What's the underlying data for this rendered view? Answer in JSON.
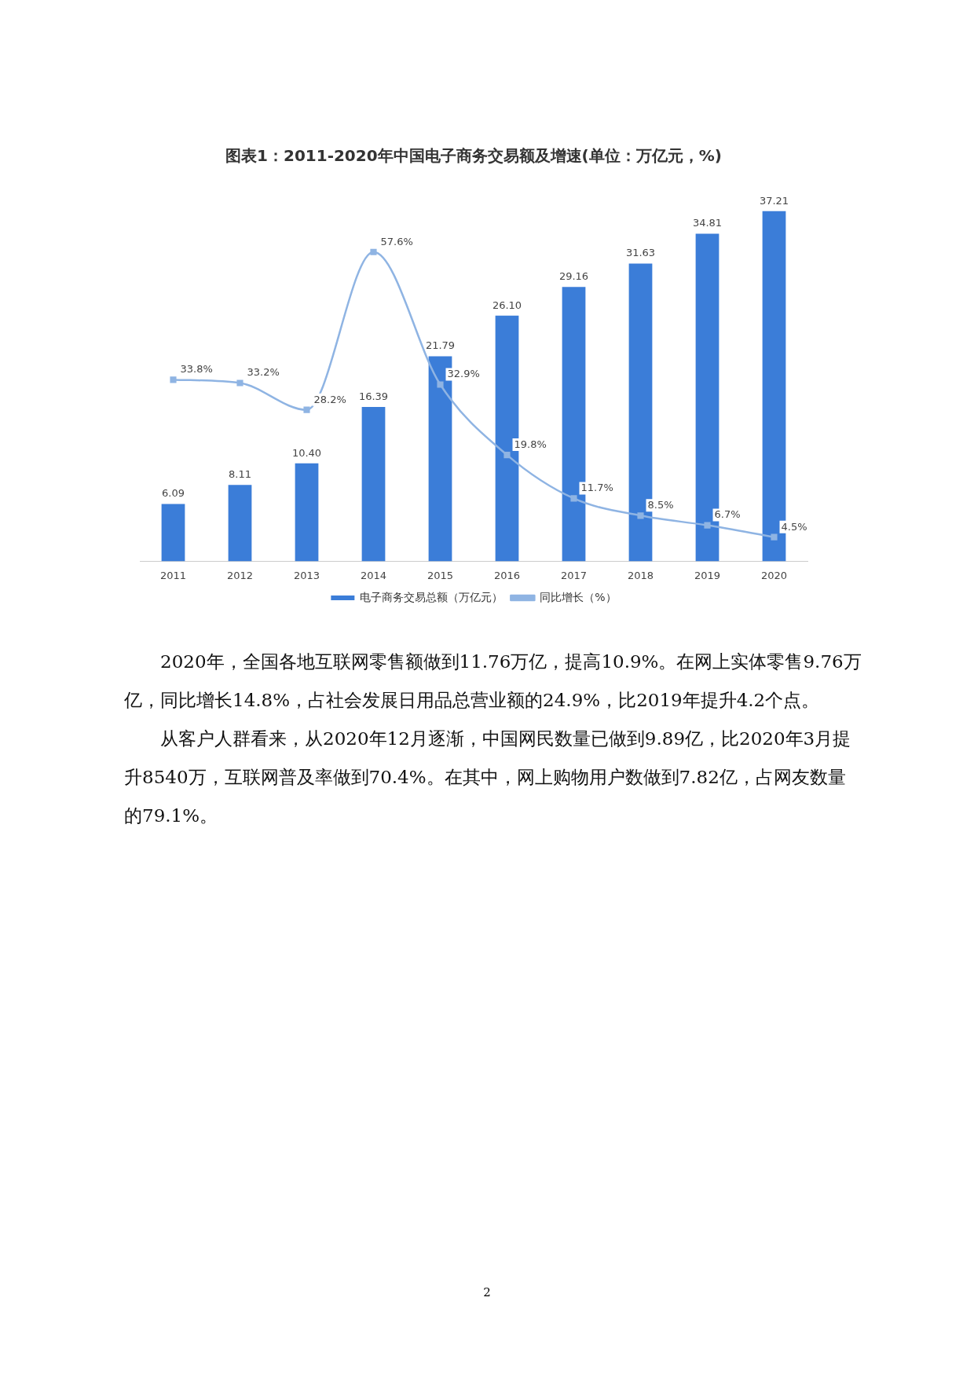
{
  "chart_data": {
    "type": "bar",
    "title": "图表1：2011-2020年中国电子商务交易额及增速(单位：万亿元，%)",
    "categories": [
      "2011",
      "2012",
      "2013",
      "2014",
      "2015",
      "2016",
      "2017",
      "2018",
      "2019",
      "2020"
    ],
    "series": [
      {
        "name": "电子商务交易总额（万亿元）",
        "color": "#3b7dd8",
        "values": [
          6.09,
          8.11,
          10.4,
          16.39,
          21.79,
          26.1,
          29.16,
          31.63,
          34.81,
          37.21
        ],
        "value_labels": [
          "6.09",
          "8.11",
          "10.40",
          "16.39",
          "21.79",
          "26.10",
          "29.16",
          "31.63",
          "34.81",
          "37.21"
        ]
      },
      {
        "name": "同比增长（%）",
        "type": "line",
        "axis": "y2",
        "color": "#8fb4e3",
        "marker": "square",
        "values": [
          33.8,
          33.2,
          28.2,
          57.6,
          32.9,
          19.8,
          11.7,
          8.5,
          6.7,
          4.5
        ],
        "value_labels": [
          "33.8%",
          "33.2%",
          "28.2%",
          "57.6%",
          "32.9%",
          "19.8%",
          "11.7%",
          "8.5%",
          "6.7%",
          "4.5%"
        ]
      }
    ],
    "legend": "bottom",
    "grid": false,
    "tick_labels": "x",
    "annotations": [
      "2020年，全国各地互联网零售额做到11.76万亿，提高10.9%。在网上实体零售9.76万亿，同比增长14.8%，占社会发展日用品总营业额的24.9%，比2019年提升4.2个点。",
      "从客户人群看来，从2020年12月逐渐，中国网民数量已做到9.89亿，比2020年3月提升8540万，互联网普及率做到70.4%。在其中，网上购物用户数做到7.82亿，占网友数量的79.1%。",
      "2"
    ]
  }
}
